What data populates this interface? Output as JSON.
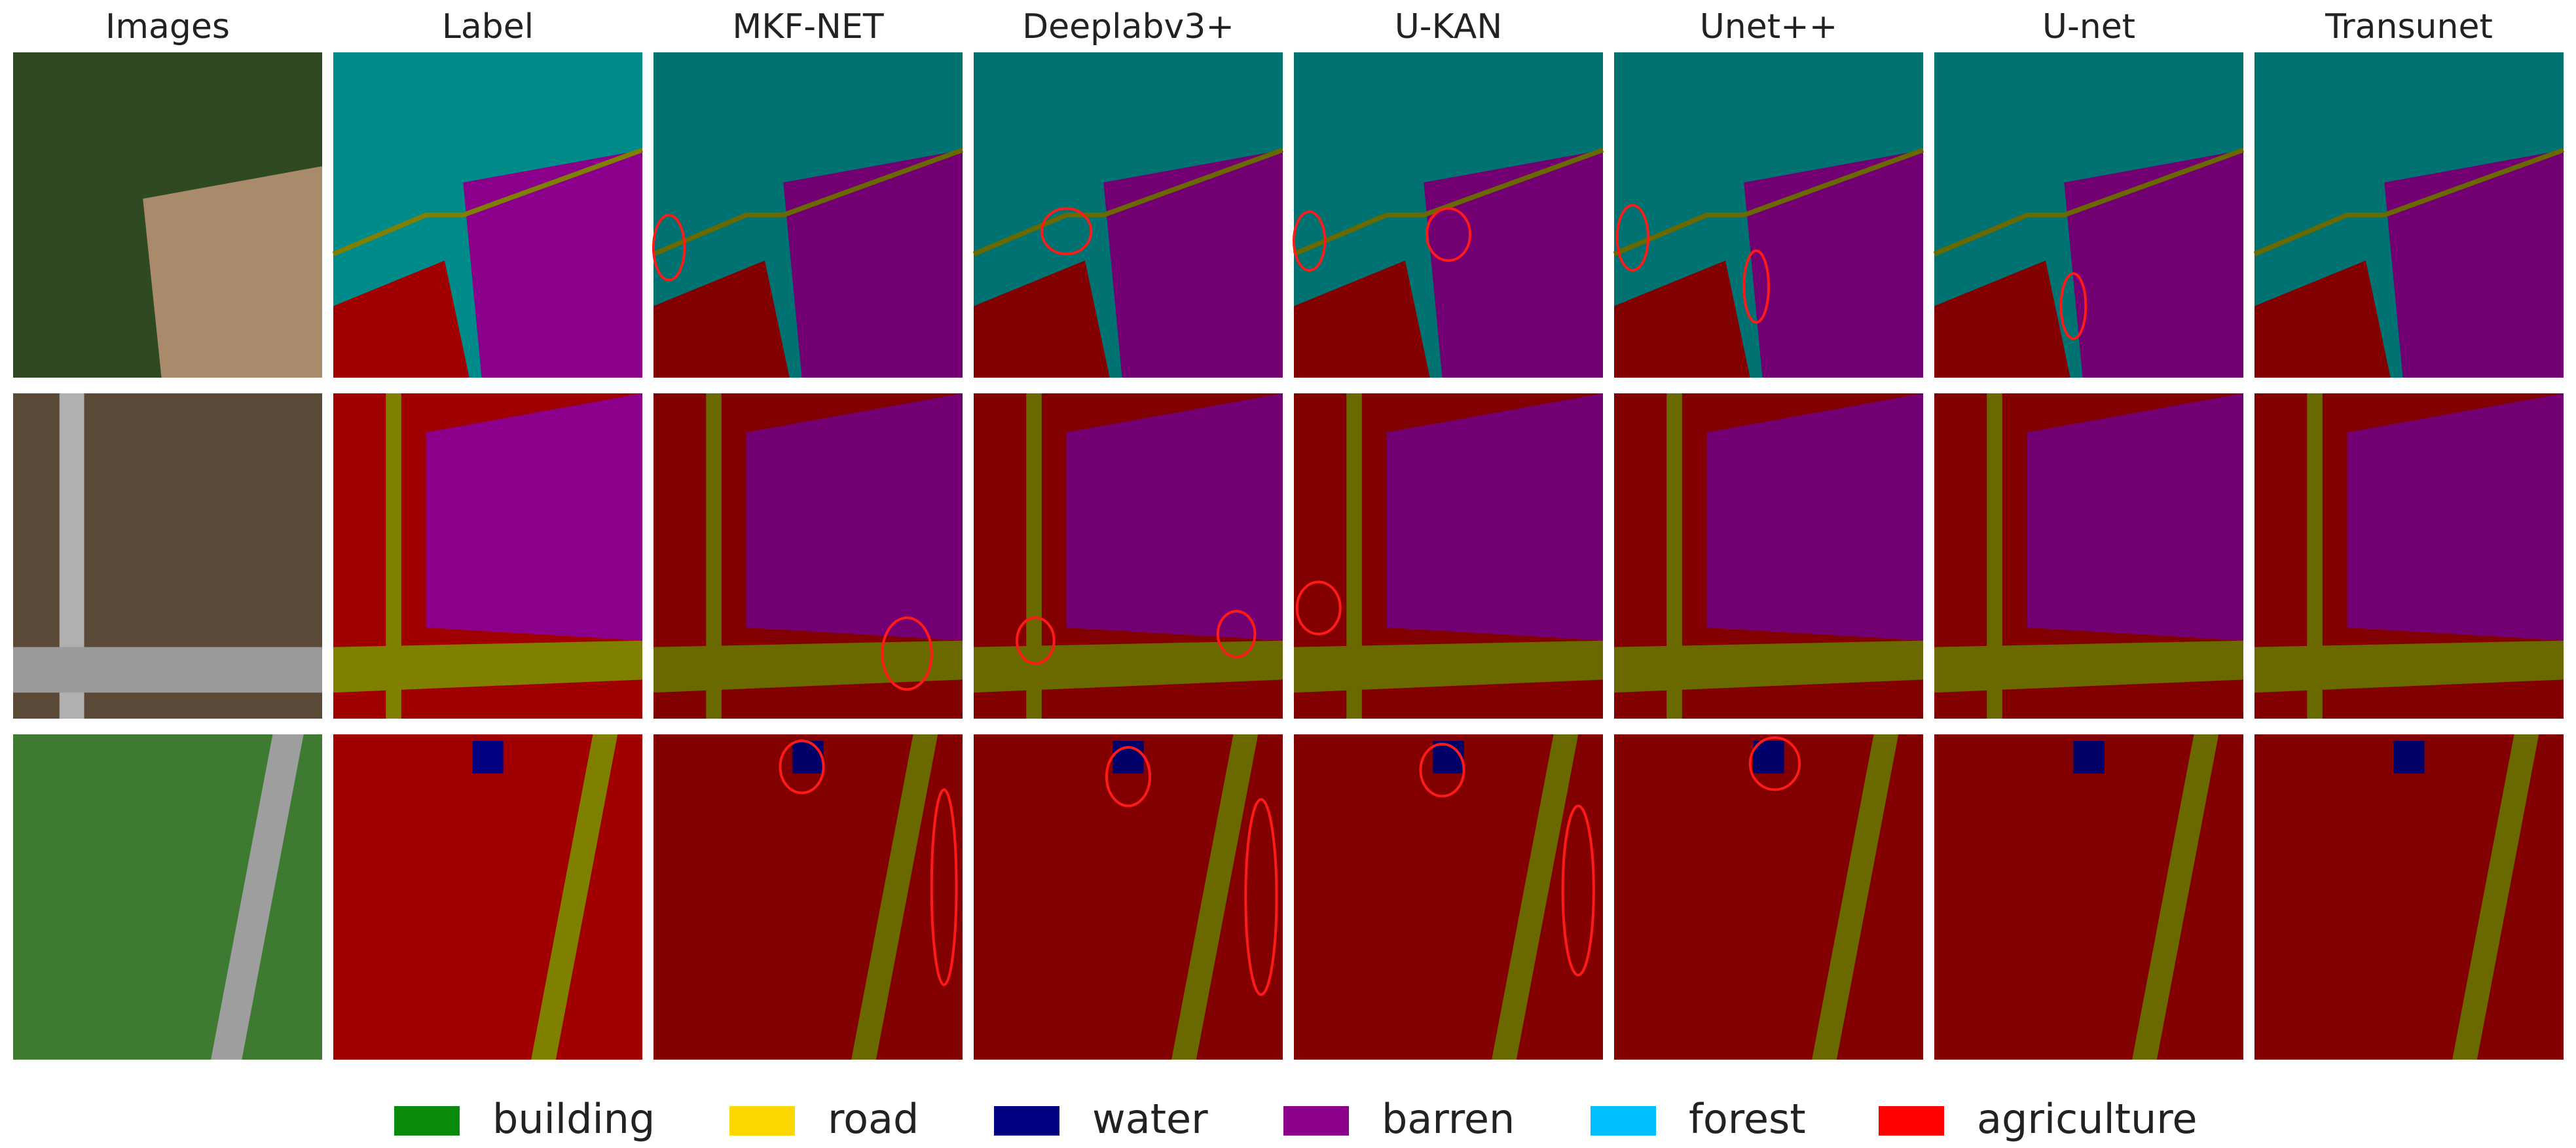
{
  "headers": [
    "Images",
    "Label",
    "MKF-NET",
    "Deeplabv3+",
    "U-KAN",
    "Unet++",
    "U-net",
    "Transunet"
  ],
  "legend": [
    {
      "label": "building",
      "color": "#0a8a0a"
    },
    {
      "label": "road",
      "color": "#ffd800"
    },
    {
      "label": "water",
      "color": "#000080"
    },
    {
      "label": "barren",
      "color": "#8b008b"
    },
    {
      "label": "forest",
      "color": "#00bfff"
    },
    {
      "label": "agriculture",
      "color": "#ff0000"
    }
  ]
}
